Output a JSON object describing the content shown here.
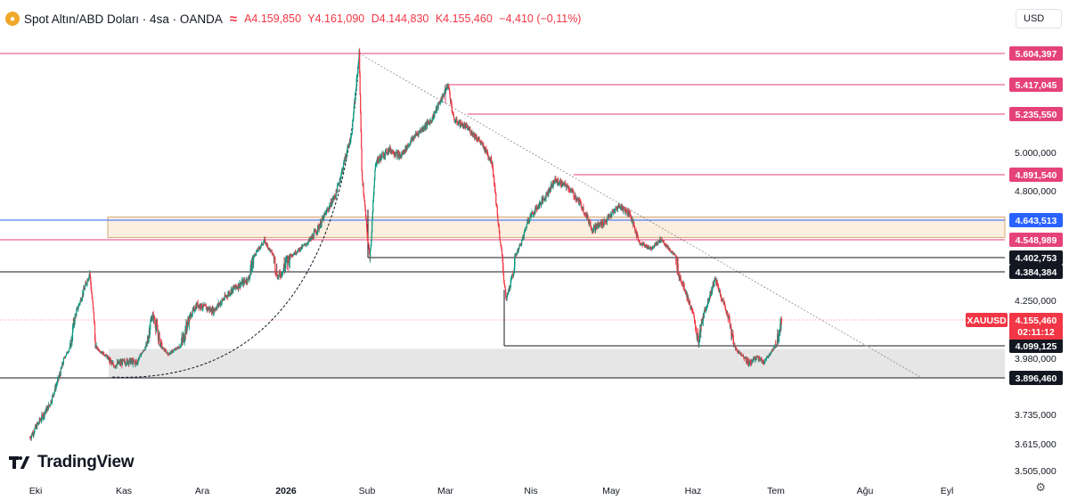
{
  "header": {
    "title": "Spot Altın/ABD Doları · 4sa · OANDA",
    "open": "A4.159,850",
    "high": "Y4.161,090",
    "low": "D4.144,830",
    "close": "K4.155,460",
    "change": "−4,410 (−0,11%)"
  },
  "currency_selector": "USD",
  "watermark": "TradingView",
  "colors": {
    "bull": "#089981",
    "bear": "#f23645",
    "resistance": "#e6427a",
    "support": "#131722",
    "zone_fill": "#fcefe0",
    "zone_border": "#d5a877",
    "blue_level": "#2962ff"
  },
  "chart_data": {
    "type": "candlestick",
    "symbol": "XAUUSD",
    "last_price": "4.155,460",
    "countdown": "02:11:12",
    "x_ticks": [
      "Eki",
      "Kas",
      "Ara",
      "2026",
      "Sub",
      "Mar",
      "Nis",
      "May",
      "Haz",
      "Tem",
      "Ağu",
      "Eyl"
    ],
    "y_ticks": [
      "5.000,000",
      "4.800,000",
      "4.250,000",
      "3.980,000",
      "3.735,000",
      "3.615,000",
      "3.505,000"
    ],
    "y_range": [
      3470,
      5650
    ],
    "price_levels": [
      {
        "label": "5.604,397",
        "value": 5604.397,
        "kind": "resistance"
      },
      {
        "label": "5.417,045",
        "value": 5417.045,
        "kind": "resistance"
      },
      {
        "label": "5.235,550",
        "value": 5235.55,
        "kind": "resistance"
      },
      {
        "label": "4.891,540",
        "value": 4891.54,
        "kind": "resistance"
      },
      {
        "label": "4.643,513",
        "value": 4643.513,
        "kind": "blue"
      },
      {
        "label": "4.548,989",
        "value": 4548.989,
        "kind": "resistance"
      },
      {
        "label": "4.402,753",
        "value": 4402.753,
        "kind": "support"
      },
      {
        "label": "4.384,384",
        "value": 4384.384,
        "kind": "support"
      },
      {
        "label": "4.099,125",
        "value": 4099.125,
        "kind": "support"
      },
      {
        "label": "3.896,460",
        "value": 3896.46,
        "kind": "support"
      }
    ],
    "zones": [
      {
        "from": 4560,
        "to": 4660,
        "style": "supply"
      },
      {
        "from": 3896.46,
        "to": 4070,
        "style": "demand"
      }
    ],
    "trendline": {
      "from": {
        "date": "2026-01-29",
        "price": 5604
      },
      "to": {
        "date": "2026-08-22",
        "price": 3900
      }
    },
    "price_path": [
      [
        "2025-09-29",
        3640
      ],
      [
        "2025-10-06",
        3780
      ],
      [
        "2025-10-10",
        3930
      ],
      [
        "2025-10-15",
        4180
      ],
      [
        "2025-10-20",
        4380
      ],
      [
        "2025-10-22",
        4090
      ],
      [
        "2025-10-28",
        3950
      ],
      [
        "2025-11-03",
        3970
      ],
      [
        "2025-11-06",
        3960
      ],
      [
        "2025-11-12",
        4180
      ],
      [
        "2025-11-18",
        4020
      ],
      [
        "2025-11-24",
        4120
      ],
      [
        "2025-11-29",
        4230
      ],
      [
        "2025-12-05",
        4200
      ],
      [
        "2025-12-12",
        4300
      ],
      [
        "2025-12-18",
        4350
      ],
      [
        "2025-12-24",
        4540
      ],
      [
        "2025-12-29",
        4360
      ],
      [
        "2026-01-05",
        4450
      ],
      [
        "2026-01-09",
        4520
      ],
      [
        "2026-01-14",
        4620
      ],
      [
        "2026-01-20",
        4780
      ],
      [
        "2026-01-26",
        5100
      ],
      [
        "2026-01-29",
        5604
      ],
      [
        "2026-01-30",
        4900
      ],
      [
        "2026-02-02",
        4420
      ],
      [
        "2026-02-04",
        4950
      ],
      [
        "2026-02-09",
        5020
      ],
      [
        "2026-02-13",
        4980
      ],
      [
        "2026-02-18",
        5100
      ],
      [
        "2026-02-24",
        5200
      ],
      [
        "2026-03-02",
        5417
      ],
      [
        "2026-03-04",
        5200
      ],
      [
        "2026-03-09",
        5150
      ],
      [
        "2026-03-13",
        5080
      ],
      [
        "2026-03-18",
        4950
      ],
      [
        "2026-03-21",
        4500
      ],
      [
        "2026-03-23",
        4250
      ],
      [
        "2026-03-26",
        4400
      ],
      [
        "2026-03-31",
        4650
      ],
      [
        "2026-04-06",
        4760
      ],
      [
        "2026-04-10",
        4860
      ],
      [
        "2026-04-15",
        4820
      ],
      [
        "2026-04-20",
        4720
      ],
      [
        "2026-04-24",
        4600
      ],
      [
        "2026-04-29",
        4640
      ],
      [
        "2026-05-04",
        4720
      ],
      [
        "2026-05-08",
        4680
      ],
      [
        "2026-05-12",
        4520
      ],
      [
        "2026-05-16",
        4480
      ],
      [
        "2026-05-20",
        4550
      ],
      [
        "2026-05-25",
        4420
      ],
      [
        "2026-05-29",
        4300
      ],
      [
        "2026-06-03",
        4100
      ],
      [
        "2026-06-06",
        4230
      ],
      [
        "2026-06-09",
        4350
      ],
      [
        "2026-06-13",
        4200
      ],
      [
        "2026-06-17",
        4050
      ],
      [
        "2026-06-21",
        3960
      ],
      [
        "2026-06-24",
        3990
      ],
      [
        "2026-06-27",
        3960
      ],
      [
        "2026-07-01",
        4100
      ],
      [
        "2026-07-03",
        4155
      ]
    ]
  }
}
